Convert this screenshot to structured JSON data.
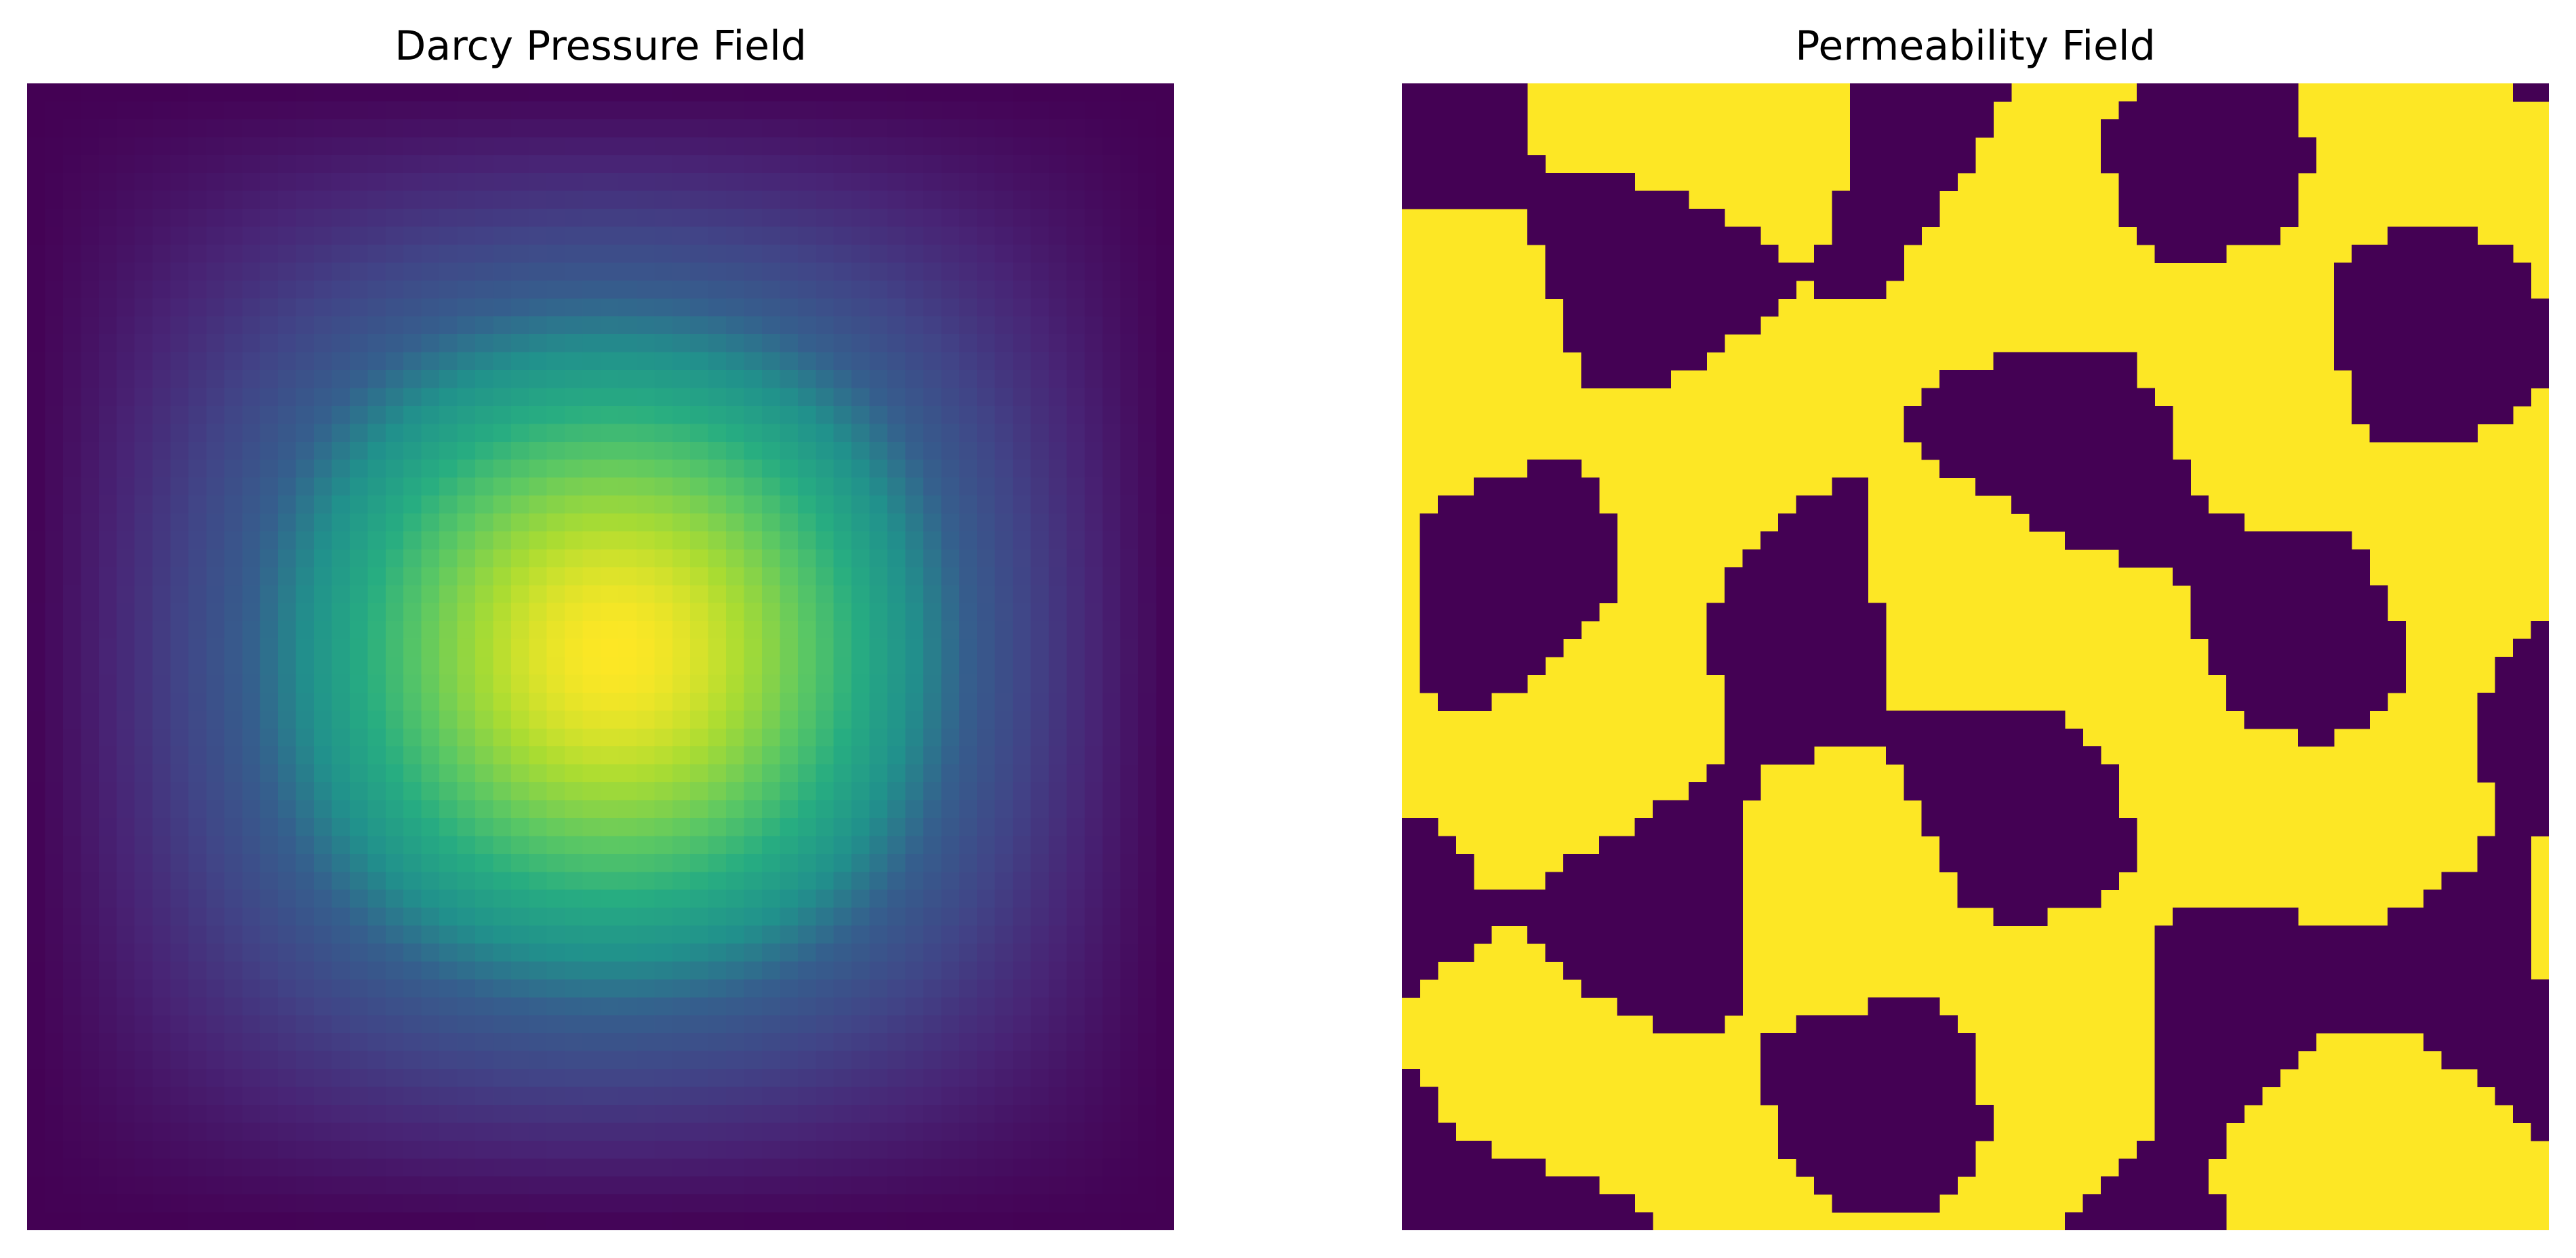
{
  "chart_data": [
    {
      "type": "heatmap",
      "title": "Darcy Pressure Field",
      "colormap": "viridis",
      "axes": "off",
      "grid": false,
      "legend": "none",
      "nx": 64,
      "ny": 64,
      "peak_location": {
        "col": 33,
        "row": 31
      },
      "value_range": [
        0,
        1
      ],
      "boundary_value": 0,
      "peak_value": 1
    },
    {
      "type": "heatmap",
      "title": "Permeability Field",
      "colormap": "viridis",
      "axes": "off",
      "grid": false,
      "legend": "none",
      "nx": 64,
      "ny": 64,
      "levels": [
        0,
        1
      ],
      "colors": {
        "low": "#440154",
        "high": "#fde725"
      }
    }
  ]
}
